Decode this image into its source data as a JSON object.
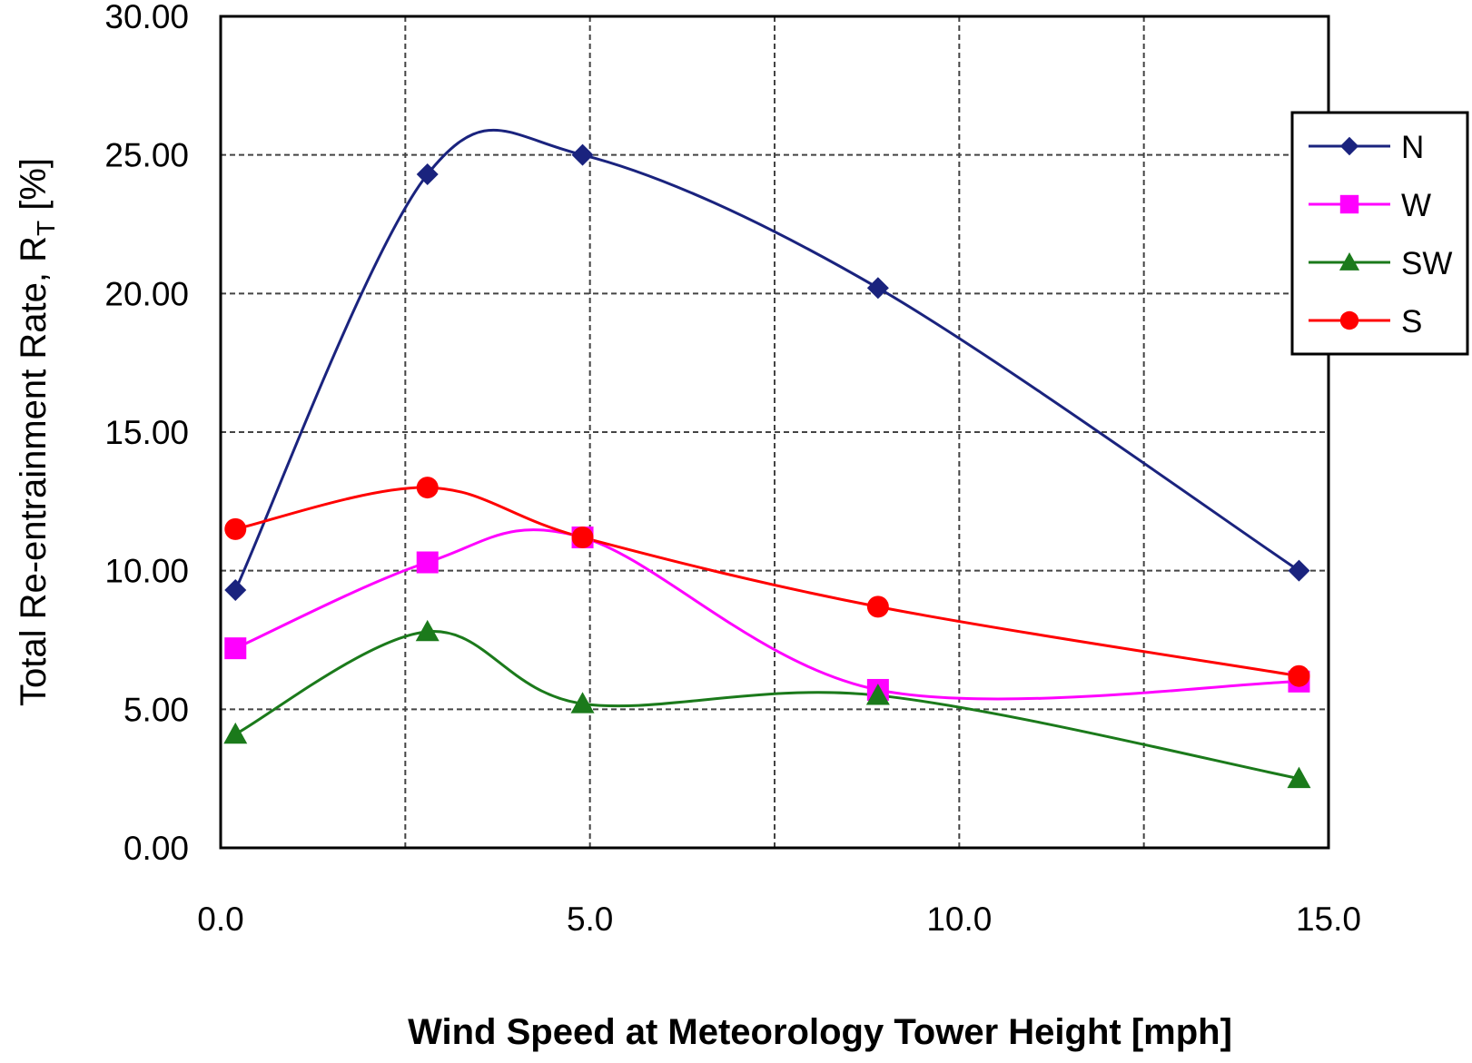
{
  "chart_data": {
    "type": "line",
    "xlabel": "Wind Speed at Meteorology Tower Height [mph]",
    "ylabel": "Total Re-entrainment Rate, R",
    "ylabel_sub": "T",
    "ylabel_unit": " [%]",
    "xlim": [
      0,
      15
    ],
    "ylim": [
      0,
      30
    ],
    "grid": true,
    "smooth": true,
    "legend_position": "right",
    "x_ticks": [
      "0.0",
      "5.0",
      "10.0",
      "15.0"
    ],
    "x_tick_values": [
      0,
      5,
      10,
      15
    ],
    "y_ticks": [
      "0.00",
      "5.00",
      "10.00",
      "15.00",
      "20.00",
      "25.00",
      "30.00"
    ],
    "y_tick_values": [
      0,
      5,
      10,
      15,
      20,
      25,
      30
    ],
    "series": [
      {
        "name": "N",
        "color": "#1a237e",
        "marker": "diamond",
        "x": [
          0.2,
          2.8,
          4.9,
          8.9,
          14.6
        ],
        "y": [
          9.3,
          24.3,
          25.0,
          20.2,
          10.0
        ]
      },
      {
        "name": "W",
        "color": "#ff00ff",
        "marker": "square",
        "x": [
          0.2,
          2.8,
          4.9,
          8.9,
          14.6
        ],
        "y": [
          7.2,
          10.3,
          11.2,
          5.7,
          6.0
        ]
      },
      {
        "name": "SW",
        "color": "#1b7a1b",
        "marker": "triangle",
        "x": [
          0.2,
          2.8,
          4.9,
          8.9,
          14.6
        ],
        "y": [
          4.1,
          7.8,
          5.2,
          5.5,
          2.5
        ]
      },
      {
        "name": "S",
        "color": "#ff0000",
        "marker": "circle",
        "x": [
          0.2,
          2.8,
          4.9,
          8.9,
          14.6
        ],
        "y": [
          11.5,
          13.0,
          11.2,
          8.7,
          6.2
        ]
      }
    ]
  }
}
